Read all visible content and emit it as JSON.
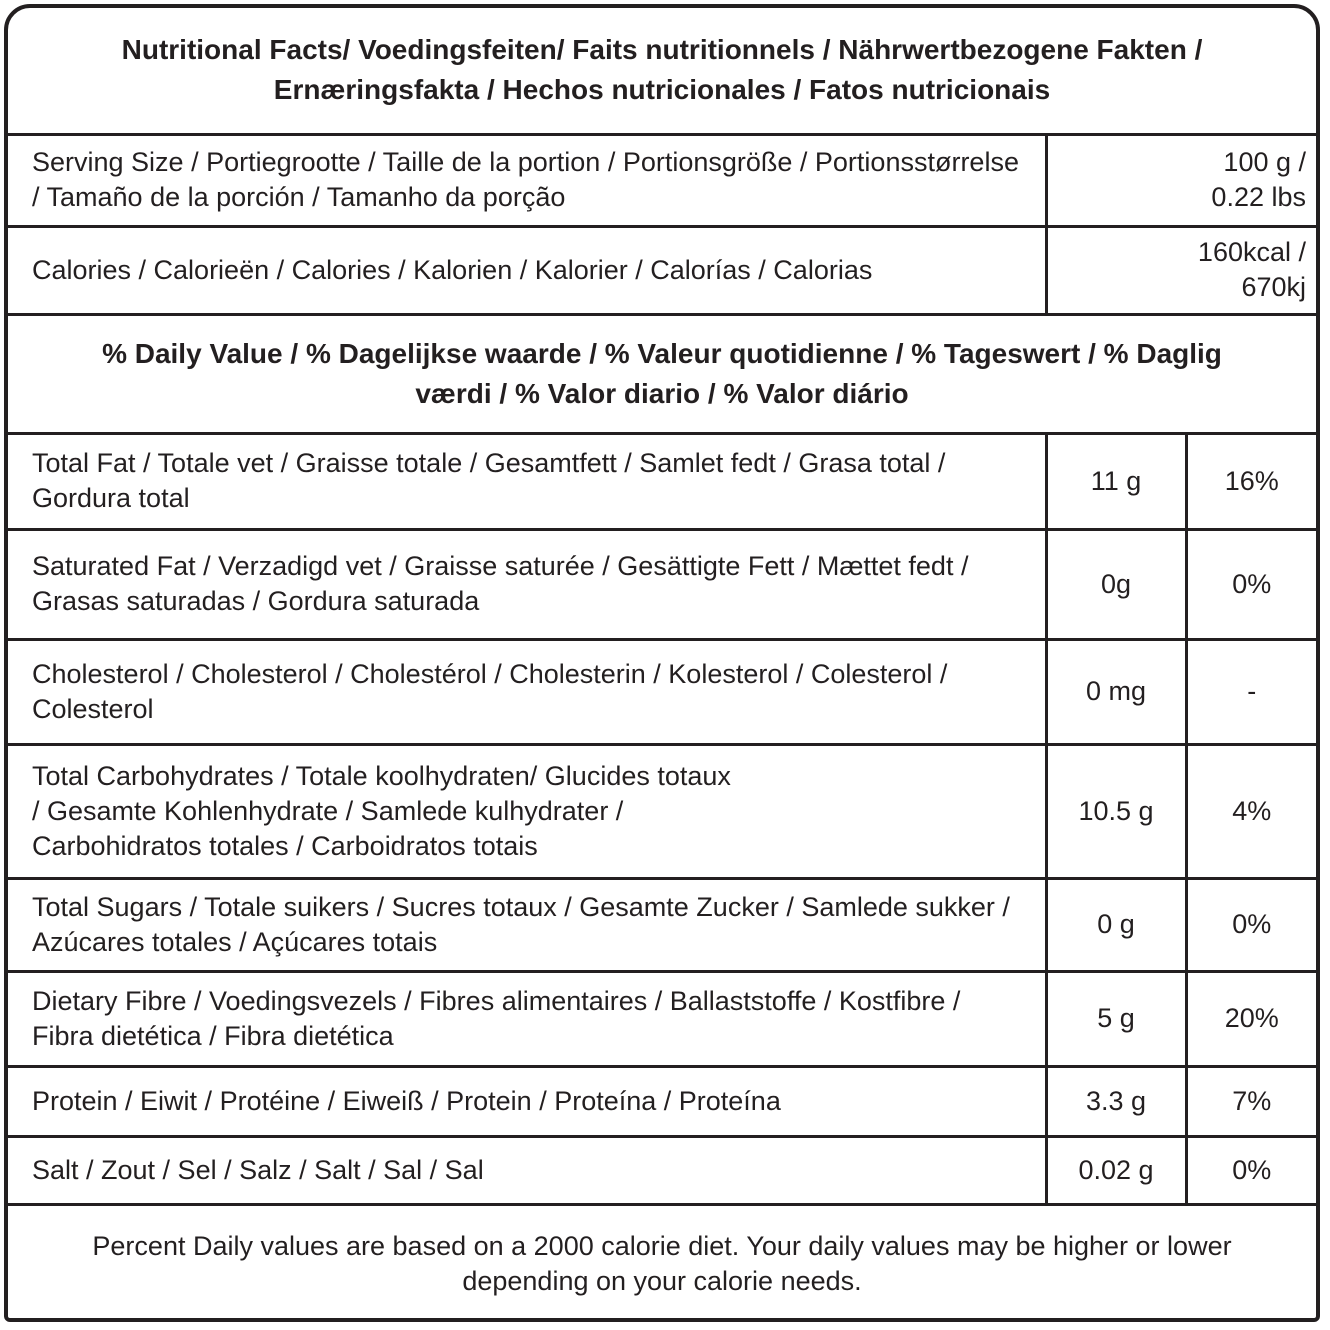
{
  "title": "Nutritional Facts/ Voedingsfeiten/ Faits nutritionnels / Nährwertbezogene Fakten / Ernæringsfakta / Hechos nutricionales / Fatos nutricionais",
  "serving": {
    "label": "Serving Size / Portiegrootte / Taille de la portion / Portionsgröße / Portionsstørrelse / Tamaño de la porción / Tamanho da porção",
    "value": "100 g / 0.22 lbs"
  },
  "calories": {
    "label": "Calories / Calorieën / Calories / Kalorien / Kalorier / Calorías / Calorias",
    "value": "160kcal / 670kj"
  },
  "daily_value_header": "% Daily Value / % Dagelijkse waarde / % Valeur quotidienne / % Tageswert / % Daglig værdi / % Valor diario / % Valor diário",
  "nutrients": [
    {
      "label": "Total Fat / Totale vet / Graisse totale / Gesamtfett / Samlet fedt / Grasa total / Gordura total",
      "amount": "11 g",
      "dv": "16%"
    },
    {
      "label": "Saturated Fat / Verzadigd vet / Graisse saturée / Gesättigte Fett / Mættet fedt / Grasas saturadas / Gordura saturada",
      "amount": "0g",
      "dv": "0%"
    },
    {
      "label": "Cholesterol / Cholesterol  / Cholestérol / Cholesterin /  Kolesterol / Colesterol / Colesterol",
      "amount": "0 mg",
      "dv": "-"
    },
    {
      "label": "Total Carbohydrates / Totale koolhydraten/ Glucides totaux / Gesamte Kohlenhydrate / Samlede kulhydrater / Carbohidratos totales / Carboidratos totais",
      "amount": "10.5 g",
      "dv": "4%"
    },
    {
      "label": "Total Sugars / Totale suikers / Sucres totaux / Gesamte Zucker / Samlede sukker / Azúcares totales / Açúcares totais",
      "amount": "0 g",
      "dv": "0%"
    },
    {
      "label": "Dietary Fibre / Voedingsvezels / Fibres alimentaires / Ballaststoffe / Kostfibre / Fibra dietética / Fibra dietética",
      "amount": "5 g",
      "dv": "20%"
    },
    {
      "label": "Protein / Eiwit / Protéine / Eiweiß / Protein / Proteína / Proteína",
      "amount": "3.3 g",
      "dv": "7%"
    },
    {
      "label": "Salt / Zout / Sel / Salz / Salt / Sal / Sal",
      "amount": "0.02 g",
      "dv": "0%"
    }
  ],
  "footnote": "Percent Daily values are based on a 2000 calorie diet. Your daily values may be higher or lower depending on your calorie needs."
}
